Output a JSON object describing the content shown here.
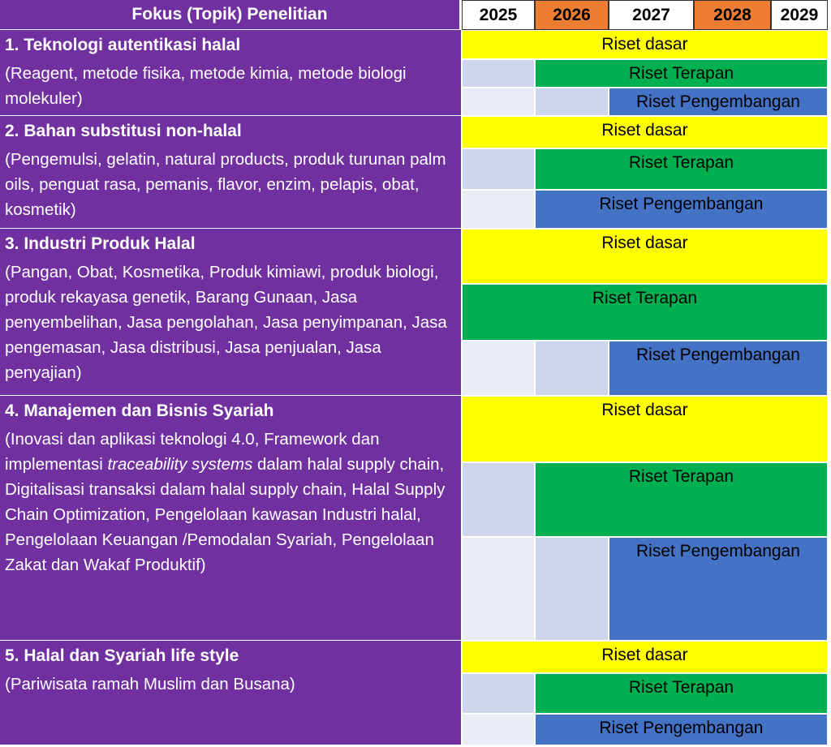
{
  "header": {
    "title": "Fokus (Topik) Penelitian",
    "years": [
      "2025",
      "2026",
      "2027",
      "2028",
      "2029"
    ]
  },
  "sections": [
    {
      "title": "1. Teknologi autentikasi halal",
      "description": [
        "(Reagent, metode fisika, metode kimia, metode biologi molekuler)"
      ],
      "activities": [
        "Riset dasar",
        "Riset Terapan",
        "Riset Pengembangan"
      ]
    },
    {
      "title": "2. Bahan substitusi non-halal",
      "description": [
        "(Pengemulsi, gelatin, natural products, produk turunan palm oils, penguat rasa, pemanis, flavor, enzim, pelapis, obat, kosmetik)"
      ],
      "activities": [
        "Riset dasar",
        "Riset Terapan",
        "Riset Pengembangan"
      ]
    },
    {
      "title": "3. Industri Produk Halal",
      "description": [
        "(Pangan, Obat, Kosmetika, Produk kimiawi, produk biologi, produk rekayasa genetik, Barang Gunaan, Jasa penyembelihan, Jasa pengolahan, Jasa penyimpanan, Jasa pengemasan, Jasa distribusi, Jasa penjualan, Jasa penyajian)"
      ],
      "activities": [
        "Riset dasar",
        "Riset Terapan",
        "Riset Pengembangan"
      ]
    },
    {
      "title": "4. Manajemen dan Bisnis Syariah",
      "description": [
        "(Inovasi dan aplikasi teknologi 4.0, Framework dan implementasi ",
        "traceability systems",
        " dalam halal supply chain, Digitalisasi transaksi dalam halal supply chain, Halal Supply Chain Optimization, Pengelolaan kawasan Industri halal,  Pengelolaan Keuangan /Pemodalan Syariah, Pengelolaan  Zakat dan Wakaf Produktif)"
      ],
      "activities": [
        "Riset dasar",
        "Riset Terapan",
        "Riset Pengembangan"
      ]
    },
    {
      "title": "5. Halal dan Syariah life style",
      "description": [
        "(Pariwisata ramah Muslim dan Busana)"
      ],
      "activities": [
        "Riset dasar",
        "Riset Terapan",
        "Riset Pengembangan"
      ]
    }
  ]
}
